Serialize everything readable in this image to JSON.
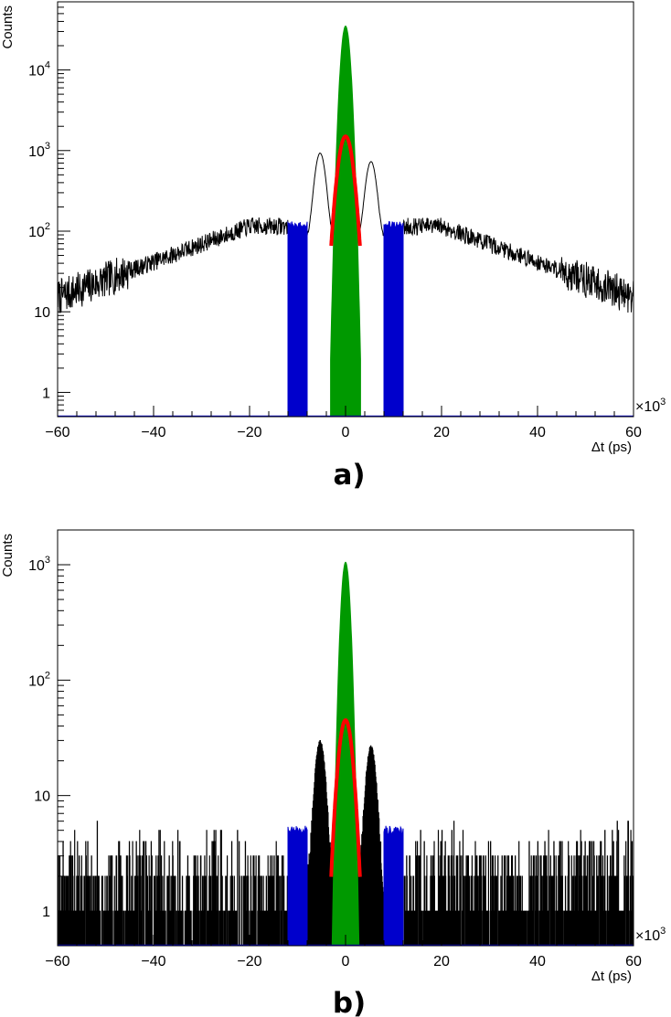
{
  "chart_data": [
    {
      "id": "a",
      "type": "histogram",
      "caption": "a)",
      "xlabel": "Δt (ps)",
      "ylabel": "Counts",
      "x_multiplier": "×10",
      "x_multiplier_exp": "3",
      "xlim": [
        -60,
        60
      ],
      "ylim": [
        0.5,
        70000
      ],
      "y_scale": "log",
      "grid": false,
      "x_ticks": [
        -60,
        -40,
        -20,
        0,
        20,
        40,
        60
      ],
      "x_tick_labels": [
        "−60",
        "−40",
        "−20",
        "0",
        "20",
        "40",
        "60"
      ],
      "y_ticks": [
        {
          "value": 1,
          "base": "1",
          "exp": ""
        },
        {
          "value": 10,
          "base": "10",
          "exp": ""
        },
        {
          "value": 100,
          "base": "10",
          "exp": "2"
        },
        {
          "value": 1000,
          "base": "10",
          "exp": "3"
        },
        {
          "value": 10000,
          "base": "10",
          "exp": "4"
        }
      ],
      "series": [
        {
          "kind": "data",
          "color": "#000000",
          "background": {
            "edge": 15,
            "plateau": 115,
            "plateau_start": 20,
            "plateau_end": 12
          },
          "side_peaks": [
            {
              "x": -5.3,
              "height": 850
            },
            {
              "x": 5.3,
              "height": 650
            }
          ],
          "gap_level": 80
        },
        {
          "kind": "fill",
          "color": "#0000cc",
          "ranges": [
            [
              -12,
              -8
            ],
            [
              8,
              12
            ]
          ],
          "height": 120
        },
        {
          "kind": "fill",
          "color": "#009900",
          "center": 0,
          "peak": 35000,
          "half_width": 1.3
        },
        {
          "kind": "fill",
          "color": "#ff0000",
          "center": 0,
          "peak": 1500,
          "half_width": 3
        }
      ],
      "colors": {
        "data": "#000000",
        "background_window": "#0000cc",
        "signal_window": "#009900",
        "fit": "#ff0000"
      }
    },
    {
      "id": "b",
      "type": "histogram",
      "caption": "b)",
      "xlabel": "Δt (ps)",
      "ylabel": "Counts",
      "x_multiplier": "×10",
      "x_multiplier_exp": "3",
      "xlim": [
        -60,
        60
      ],
      "ylim": [
        0.5,
        2000
      ],
      "y_scale": "log",
      "grid": false,
      "x_ticks": [
        -60,
        -40,
        -20,
        0,
        20,
        40,
        60
      ],
      "x_tick_labels": [
        "−60",
        "−40",
        "−20",
        "0",
        "20",
        "40",
        "60"
      ],
      "y_ticks": [
        {
          "value": 1,
          "base": "1",
          "exp": ""
        },
        {
          "value": 10,
          "base": "10",
          "exp": ""
        },
        {
          "value": 100,
          "base": "10",
          "exp": "2"
        },
        {
          "value": 1000,
          "base": "10",
          "exp": "3"
        }
      ],
      "series": [
        {
          "kind": "data",
          "color": "#000000",
          "background_levels": [
            0.5,
            1,
            2,
            3,
            4,
            5
          ],
          "side_peaks": [
            {
              "x": -5.3,
              "height": 28
            },
            {
              "x": 5.3,
              "height": 25
            }
          ]
        },
        {
          "kind": "fill",
          "color": "#0000cc",
          "ranges": [
            [
              -12,
              -8
            ],
            [
              8,
              12
            ]
          ],
          "height": 5
        },
        {
          "kind": "fill",
          "color": "#009900",
          "center": 0,
          "peak": 1050,
          "half_width": 1.3
        },
        {
          "kind": "fill",
          "color": "#ff0000",
          "center": 0,
          "peak": 45,
          "half_width": 3
        }
      ],
      "colors": {
        "data": "#000000",
        "background_window": "#0000cc",
        "signal_window": "#009900",
        "fit": "#ff0000"
      }
    }
  ]
}
